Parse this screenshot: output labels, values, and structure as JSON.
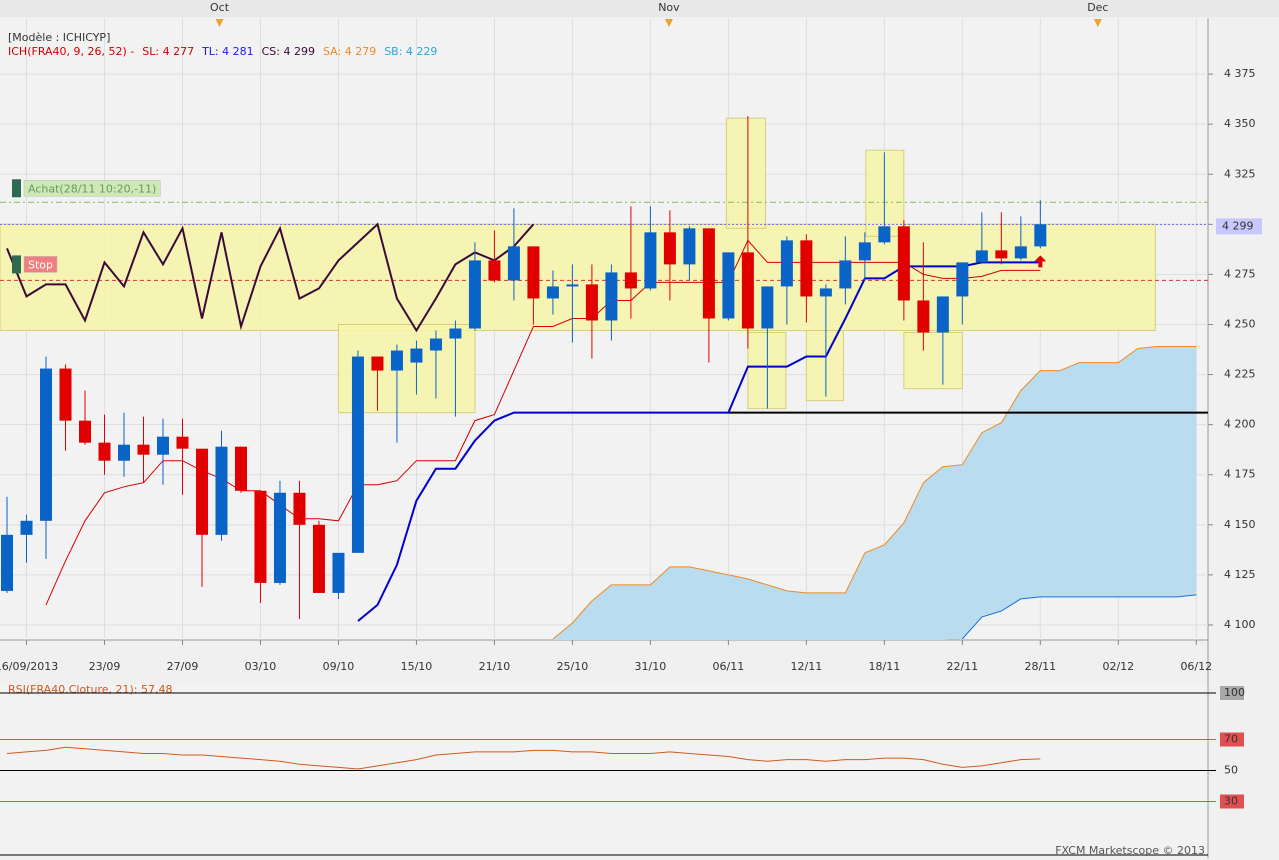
{
  "chart_data": [
    {
      "type": "candlestick",
      "model_label": "[Modèle : ICHICYP]",
      "legend": [
        {
          "text": "ICH(FRA40, 9, 26, 52) -",
          "color": "#d40000"
        },
        {
          "text": "SL: 4 277",
          "color": "#d40000"
        },
        {
          "text": "TL: 4 281",
          "color": "#1a1aff"
        },
        {
          "text": "CS: 4 299",
          "color": "#3a0a3a"
        },
        {
          "text": "SA: 4 279",
          "color": "#f08a24"
        },
        {
          "text": "SB: 4 229",
          "color": "#2aa6e0"
        }
      ],
      "up_color": "#0a64c8",
      "down_color": "#e00000",
      "open": [
        4117,
        4145,
        4152,
        4228,
        4202,
        4191,
        4182,
        4190,
        4185,
        4194,
        4188,
        4145,
        4189,
        4167,
        4121,
        4166,
        4150,
        4116,
        4136,
        4234,
        4227,
        4231,
        4237,
        4243,
        4248,
        4282,
        4272,
        4289,
        4263,
        4269,
        4270,
        4252,
        4276,
        4268,
        4296,
        4280,
        4298,
        4253,
        4286,
        4248,
        4269,
        4292,
        4264,
        4268,
        4282,
        4291,
        4299,
        4262,
        4246,
        4264,
        4281,
        4287,
        4283,
        4289
      ],
      "high": [
        4164,
        4155,
        4234,
        4230,
        4217,
        4205,
        4206,
        4204,
        4203,
        4203,
        4188,
        4197,
        4189,
        4167,
        4172,
        4172,
        4152,
        4136,
        4237,
        4234,
        4240,
        4242,
        4247,
        4252,
        4291,
        4297,
        4308,
        4289,
        4277,
        4280,
        4280,
        4280,
        4309,
        4309,
        4307,
        4299,
        4298,
        4286,
        4354,
        4269,
        4294,
        4295,
        4270,
        4294,
        4296,
        4336,
        4302,
        4291,
        4264,
        4281,
        4306,
        4306,
        4304,
        4312
      ],
      "low": [
        4116,
        4131,
        4133,
        4187,
        4190,
        4175,
        4174,
        4171,
        4170,
        4165,
        4119,
        4142,
        4166,
        4111,
        4120,
        4103,
        4116,
        4113,
        4136,
        4207,
        4191,
        4215,
        4213,
        4204,
        4247,
        4271,
        4262,
        4250,
        4255,
        4241,
        4233,
        4242,
        4253,
        4267,
        4262,
        4272,
        4231,
        4252,
        4238,
        4208,
        4250,
        4251,
        4214,
        4260,
        4272,
        4290,
        4252,
        4237,
        4220,
        4250,
        4281,
        4280,
        4282,
        4288
      ],
      "close": [
        4145,
        4152,
        4228,
        4202,
        4191,
        4182,
        4190,
        4185,
        4194,
        4188,
        4145,
        4189,
        4167,
        4121,
        4166,
        4150,
        4116,
        4136,
        4234,
        4227,
        4237,
        4238,
        4243,
        4248,
        4282,
        4272,
        4289,
        4263,
        4269,
        4270,
        4252,
        4276,
        4268,
        4296,
        4280,
        4298,
        4253,
        4286,
        4248,
        4269,
        4292,
        4264,
        4268,
        4282,
        4291,
        4299,
        4262,
        4246,
        4264,
        4281,
        4287,
        4283,
        4289,
        4300
      ],
      "overlays": [
        {
          "color": "#d40000",
          "width": 1,
          "values": [
            null,
            null,
            4110,
            4132,
            4152,
            4166,
            4169,
            4171,
            4182,
            4182,
            4177,
            4173,
            4167,
            4167,
            4160,
            4153,
            4153,
            4152,
            4170,
            4170,
            4172,
            4182,
            4182,
            4182,
            4202,
            4205,
            4227,
            4249,
            4249,
            4253,
            4253,
            4262,
            4262,
            4271,
            4271,
            4271,
            4271,
            4271,
            4292,
            4281,
            4281,
            4281,
            4281,
            4281,
            4281,
            4281,
            4281,
            4275,
            4273,
            4273,
            4274,
            4277,
            4277,
            4277
          ]
        },
        {
          "color": "#0000d0",
          "width": 2,
          "values": [
            null,
            null,
            null,
            null,
            null,
            null,
            null,
            null,
            null,
            null,
            null,
            null,
            null,
            null,
            null,
            null,
            null,
            null,
            4102,
            4110,
            4130,
            4162,
            4178,
            4178,
            4192,
            4202,
            4206,
            4206,
            4206,
            4206,
            4206,
            4206,
            4206,
            4206,
            4206,
            4206,
            4206,
            4206,
            4229,
            4229,
            4229,
            4234,
            4234,
            4253,
            4273,
            4273,
            4279,
            4279,
            4279,
            4279,
            4281,
            4281,
            4281,
            4281
          ]
        },
        {
          "color": "#3a0a3a",
          "width": 2,
          "values": [
            4288,
            4264,
            4270,
            4270,
            4252,
            4281,
            4269,
            4296,
            4280,
            4298,
            4253,
            4296,
            4249,
            4279,
            4298,
            4263,
            4268,
            4282,
            4291,
            4300,
            4263,
            4247,
            4263,
            4280,
            4286,
            4282,
            4289,
            4300,
            null,
            null,
            null,
            null,
            null,
            null,
            null,
            null,
            null,
            null,
            null,
            null,
            null,
            null,
            null,
            null,
            null,
            null,
            null,
            null,
            null,
            null,
            null,
            null,
            null,
            null
          ]
        }
      ],
      "cloud": {
        "fill": "#b9dcee",
        "upper_color": "#f08a24",
        "lower_color": "#1a6fe0",
        "upper": [
          null,
          null,
          null,
          null,
          null,
          null,
          null,
          null,
          null,
          null,
          null,
          null,
          null,
          null,
          null,
          null,
          null,
          null,
          null,
          null,
          null,
          null,
          null,
          null,
          null,
          null,
          null,
          null,
          4093,
          4101,
          4112,
          4120,
          4120,
          4120,
          4129,
          4129,
          4127,
          4125,
          4123,
          4120,
          4117,
          4116,
          4116,
          4116,
          4136,
          4140,
          4151,
          4171,
          4179,
          4180,
          4196,
          4201,
          4217,
          4227,
          4227,
          4231,
          4231,
          4231,
          4238,
          4239,
          4239,
          4239
        ],
        "lower": [
          null,
          null,
          null,
          null,
          null,
          null,
          null,
          null,
          null,
          null,
          null,
          null,
          null,
          null,
          null,
          null,
          null,
          null,
          null,
          null,
          null,
          null,
          null,
          null,
          null,
          null,
          null,
          null,
          null,
          null,
          null,
          null,
          null,
          null,
          null,
          null,
          null,
          null,
          null,
          null,
          null,
          null,
          null,
          null,
          null,
          null,
          null,
          null,
          null,
          4093,
          4104,
          4107,
          4113,
          4114,
          4114,
          4114,
          4114,
          4114,
          4114,
          4114,
          4114,
          4115
        ]
      },
      "zones": [
        {
          "x": [
            -0.36,
            58.9
          ],
          "y": [
            4247,
            4300
          ]
        },
        {
          "x": [
            17,
            24
          ],
          "y": [
            4206,
            4250
          ]
        },
        {
          "x": [
            36.9,
            38.9
          ],
          "y": [
            4298,
            4353
          ]
        },
        {
          "x": [
            38,
            39.95
          ],
          "y": [
            4208,
            4246
          ]
        },
        {
          "x": [
            41,
            42.9
          ],
          "y": [
            4212,
            4247
          ]
        },
        {
          "x": [
            44.05,
            46
          ],
          "y": [
            4294,
            4337
          ]
        },
        {
          "x": [
            46,
            49
          ],
          "y": [
            4218,
            4246
          ]
        }
      ],
      "zone_color": "#f7f4a8",
      "levels": [
        {
          "value": 4311,
          "color": "#8cb85a",
          "dash": "6 3 2 3"
        },
        {
          "value": 4300,
          "color": "#6a6aff",
          "dash": "2 2"
        },
        {
          "value": 4272,
          "color": "#e03030",
          "dash": "4 3"
        },
        {
          "value": 4206,
          "from": 37,
          "color": "#000000",
          "dash": "none"
        }
      ],
      "price_tag": {
        "value": 4299,
        "label": "4 299",
        "color": "#c8c8ff"
      },
      "orders": [
        {
          "label": "Achat(28/11 10:20,-11)",
          "value": 4318,
          "color": "#cfe8b8",
          "text_color": "#6a9a5a",
          "marker": "#2e6a50"
        },
        {
          "label": "Stop",
          "value": 4280,
          "color": "#f08080",
          "text_color": "#ffffff",
          "marker": "#2e6a50"
        }
      ],
      "signal_arrow": {
        "index": 53,
        "value": 4281,
        "color": "#e00000"
      },
      "xlim": [
        -0.36,
        61.6
      ],
      "xticks": [
        {
          "value": 1,
          "label": "16/09/2013"
        },
        {
          "value": 5,
          "label": "23/09"
        },
        {
          "value": 9,
          "label": "27/09"
        },
        {
          "value": 13,
          "label": "03/10"
        },
        {
          "value": 17,
          "label": "09/10"
        },
        {
          "value": 21,
          "label": "15/10"
        },
        {
          "value": 25,
          "label": "21/10"
        },
        {
          "value": 29,
          "label": "25/10"
        },
        {
          "value": 33,
          "label": "31/10"
        },
        {
          "value": 37,
          "label": "06/11"
        },
        {
          "value": 41,
          "label": "12/11"
        },
        {
          "value": 45,
          "label": "18/11"
        },
        {
          "value": 49,
          "label": "22/11"
        },
        {
          "value": 53,
          "label": "28/11"
        },
        {
          "value": 57,
          "label": "02/12"
        },
        {
          "value": 61,
          "label": "06/12"
        }
      ],
      "month_ticks": [
        {
          "value": 10.9,
          "label": "Oct"
        },
        {
          "value": 33.95,
          "label": "Nov"
        },
        {
          "value": 55.95,
          "label": "Dec"
        }
      ],
      "ylim": [
        4092.5,
        4403
      ],
      "yticks": [
        {
          "value": 4100,
          "label": "4 100"
        },
        {
          "value": 4125,
          "label": "4 125"
        },
        {
          "value": 4150,
          "label": "4 150"
        },
        {
          "value": 4175,
          "label": "4 175"
        },
        {
          "value": 4200,
          "label": "4 200"
        },
        {
          "value": 4225,
          "label": "4 225"
        },
        {
          "value": 4250,
          "label": "4 250"
        },
        {
          "value": 4275,
          "label": "4 275"
        },
        {
          "value": 4300,
          "label": "4 300"
        },
        {
          "value": 4325,
          "label": "4 325"
        },
        {
          "value": 4350,
          "label": "4 350"
        },
        {
          "value": 4375,
          "label": "4 375"
        }
      ],
      "grid": true
    },
    {
      "type": "line",
      "title": "RSI(FRA40.Cloture, 21): 57,48",
      "color": "#d05a1e",
      "values": [
        61,
        62,
        63,
        65,
        64,
        63,
        62,
        61,
        61,
        60,
        60,
        59,
        58,
        57,
        56,
        54,
        53,
        52,
        51,
        53,
        55,
        57,
        60,
        61,
        62,
        62,
        62,
        63,
        63,
        62,
        62,
        61,
        61,
        61,
        62,
        61,
        60,
        59,
        57,
        56,
        57,
        57,
        56,
        57,
        57,
        58,
        58,
        57,
        54,
        52,
        53,
        55,
        57,
        57.48
      ],
      "xlim": [
        -0.36,
        61.6
      ],
      "ylim": [
        0,
        100
      ],
      "yticks": [
        30,
        50,
        70,
        100
      ],
      "tick_line_colors": [
        "#e05050",
        "#000000",
        "#e05050",
        "#000000"
      ],
      "tick_label_bg": [
        "#e05050",
        null,
        "#e05050",
        "#a8a8a8"
      ]
    }
  ],
  "footer": "FXCM Marketscope © 2013"
}
